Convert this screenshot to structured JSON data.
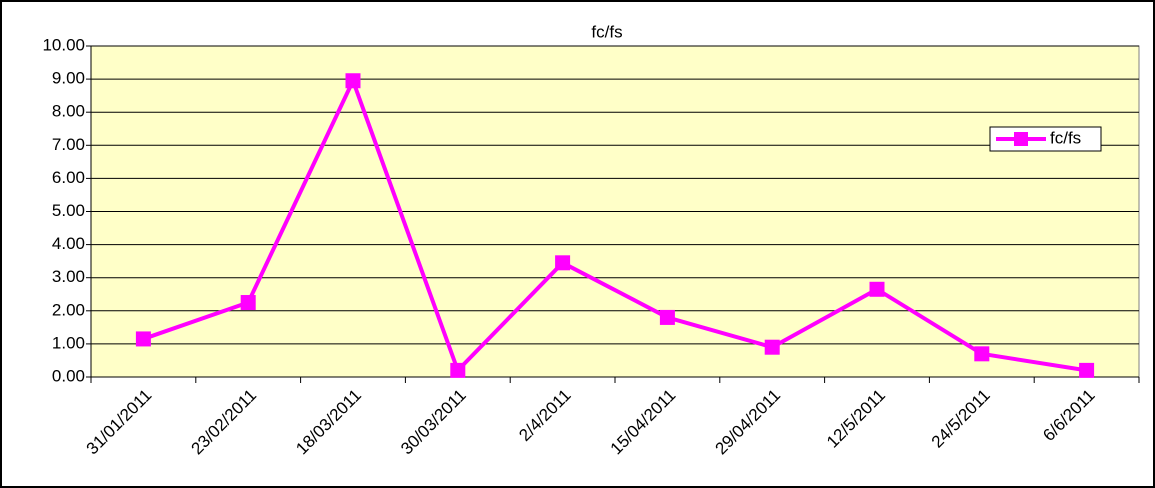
{
  "chart_data": {
    "type": "line",
    "title": "fc/fs",
    "categories": [
      "31/01/2011",
      "23/02/2011",
      "18/03/2011",
      "30/03/2011",
      "2/4/2011",
      "15/04/2011",
      "29/04/2011",
      "12/5/2011",
      "24/5/2011",
      "6/6/2011"
    ],
    "series": [
      {
        "name": "fc/fs",
        "color": "#ff00ff",
        "values": [
          1.15,
          2.25,
          8.95,
          0.2,
          3.45,
          1.8,
          0.9,
          2.65,
          0.7,
          0.2
        ]
      }
    ],
    "ylim": [
      0,
      10
    ],
    "yticks": [
      {
        "value": 0,
        "label": "0.00"
      },
      {
        "value": 1,
        "label": "1.00"
      },
      {
        "value": 2,
        "label": "2.00"
      },
      {
        "value": 3,
        "label": "3.00"
      },
      {
        "value": 4,
        "label": "4.00"
      },
      {
        "value": 5,
        "label": "5.00"
      },
      {
        "value": 6,
        "label": "6.00"
      },
      {
        "value": 7,
        "label": "7.00"
      },
      {
        "value": 8,
        "label": "8.00"
      },
      {
        "value": 9,
        "label": "9.00"
      },
      {
        "value": 10,
        "label": "10.00"
      }
    ],
    "grid": true,
    "legend": "right"
  }
}
